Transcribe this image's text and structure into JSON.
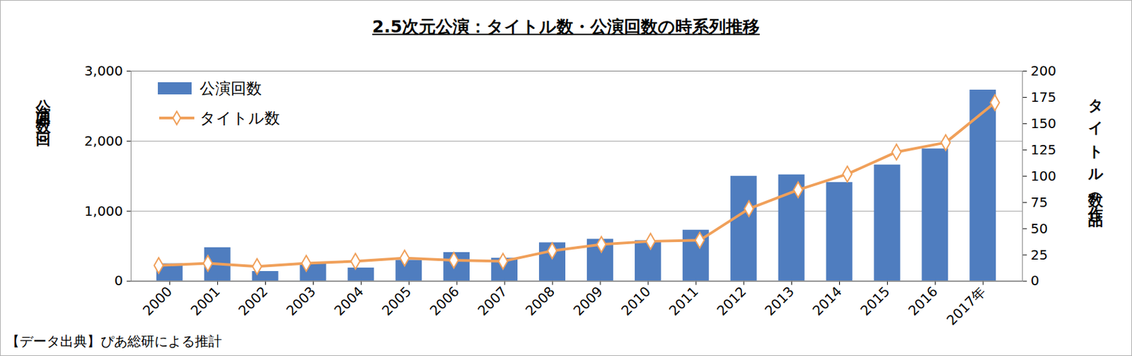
{
  "chart_data": {
    "type": "bar",
    "title": "2.5次元公演：タイトル数・公演回数の時系列推移",
    "caption": "【データ出典】ぴあ総研による推計",
    "categories": [
      "2000",
      "2001",
      "2002",
      "2003",
      "2004",
      "2005",
      "2006",
      "2007",
      "2008",
      "2009",
      "2010",
      "2011",
      "2012",
      "2013",
      "2014",
      "2015",
      "2016",
      "2017年"
    ],
    "series": [
      {
        "name": "公演回数",
        "type": "bar",
        "color": "#4f7dbf",
        "values": [
          250,
          480,
          140,
          250,
          190,
          300,
          410,
          330,
          550,
          600,
          580,
          730,
          1500,
          1520,
          1410,
          1660,
          1890,
          2730
        ]
      },
      {
        "name": "タイトル数",
        "type": "line",
        "axis": "y2",
        "color": "#f0a05a",
        "marker": "diamond",
        "values": [
          15,
          17,
          14,
          17,
          19,
          22,
          20,
          19,
          29,
          35,
          38,
          39,
          69,
          87,
          102,
          123,
          132,
          170
        ]
      }
    ],
    "ylabel": "公演回数（回）",
    "y2label": "タイトル数（作品）",
    "ylim": [
      0,
      3000
    ],
    "yticks": [
      0,
      {
        "value": 1000,
        "label": "1,000"
      },
      {
        "value": 2000,
        "label": "2,000"
      },
      {
        "value": 3000,
        "label": "3,000"
      }
    ],
    "y2lim": [
      0,
      200
    ],
    "y2ticks": [
      0,
      25,
      50,
      75,
      100,
      125,
      150,
      175,
      200
    ],
    "grid": true,
    "legend": "upper left"
  }
}
